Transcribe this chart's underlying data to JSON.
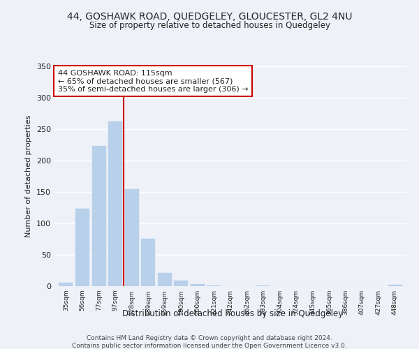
{
  "title": "44, GOSHAWK ROAD, QUEDGELEY, GLOUCESTER, GL2 4NU",
  "subtitle": "Size of property relative to detached houses in Quedgeley",
  "xlabel": "Distribution of detached houses by size in Quedgeley",
  "ylabel": "Number of detached properties",
  "bar_labels": [
    "35sqm",
    "56sqm",
    "77sqm",
    "97sqm",
    "118sqm",
    "139sqm",
    "159sqm",
    "180sqm",
    "200sqm",
    "221sqm",
    "242sqm",
    "262sqm",
    "283sqm",
    "304sqm",
    "324sqm",
    "345sqm",
    "365sqm",
    "386sqm",
    "407sqm",
    "427sqm",
    "448sqm"
  ],
  "bar_values": [
    6,
    123,
    223,
    262,
    155,
    76,
    21,
    9,
    3,
    1,
    0,
    0,
    1,
    0,
    0,
    0,
    0,
    0,
    0,
    0,
    2
  ],
  "bar_color": "#b8d0ea",
  "bar_edge_color": "#b8d0ea",
  "vline_x": 3.5,
  "vline_color": "#cc0000",
  "annotation_title": "44 GOSHAWK ROAD: 115sqm",
  "annotation_line1": "← 65% of detached houses are smaller (567)",
  "annotation_line2": "35% of semi-detached houses are larger (306) →",
  "annotation_box_color": "#ffffff",
  "annotation_box_edge": "#cc0000",
  "ylim": [
    0,
    350
  ],
  "yticks": [
    0,
    50,
    100,
    150,
    200,
    250,
    300,
    350
  ],
  "footer1": "Contains HM Land Registry data © Crown copyright and database right 2024.",
  "footer2": "Contains public sector information licensed under the Open Government Licence v3.0.",
  "bg_color": "#eef2f8"
}
